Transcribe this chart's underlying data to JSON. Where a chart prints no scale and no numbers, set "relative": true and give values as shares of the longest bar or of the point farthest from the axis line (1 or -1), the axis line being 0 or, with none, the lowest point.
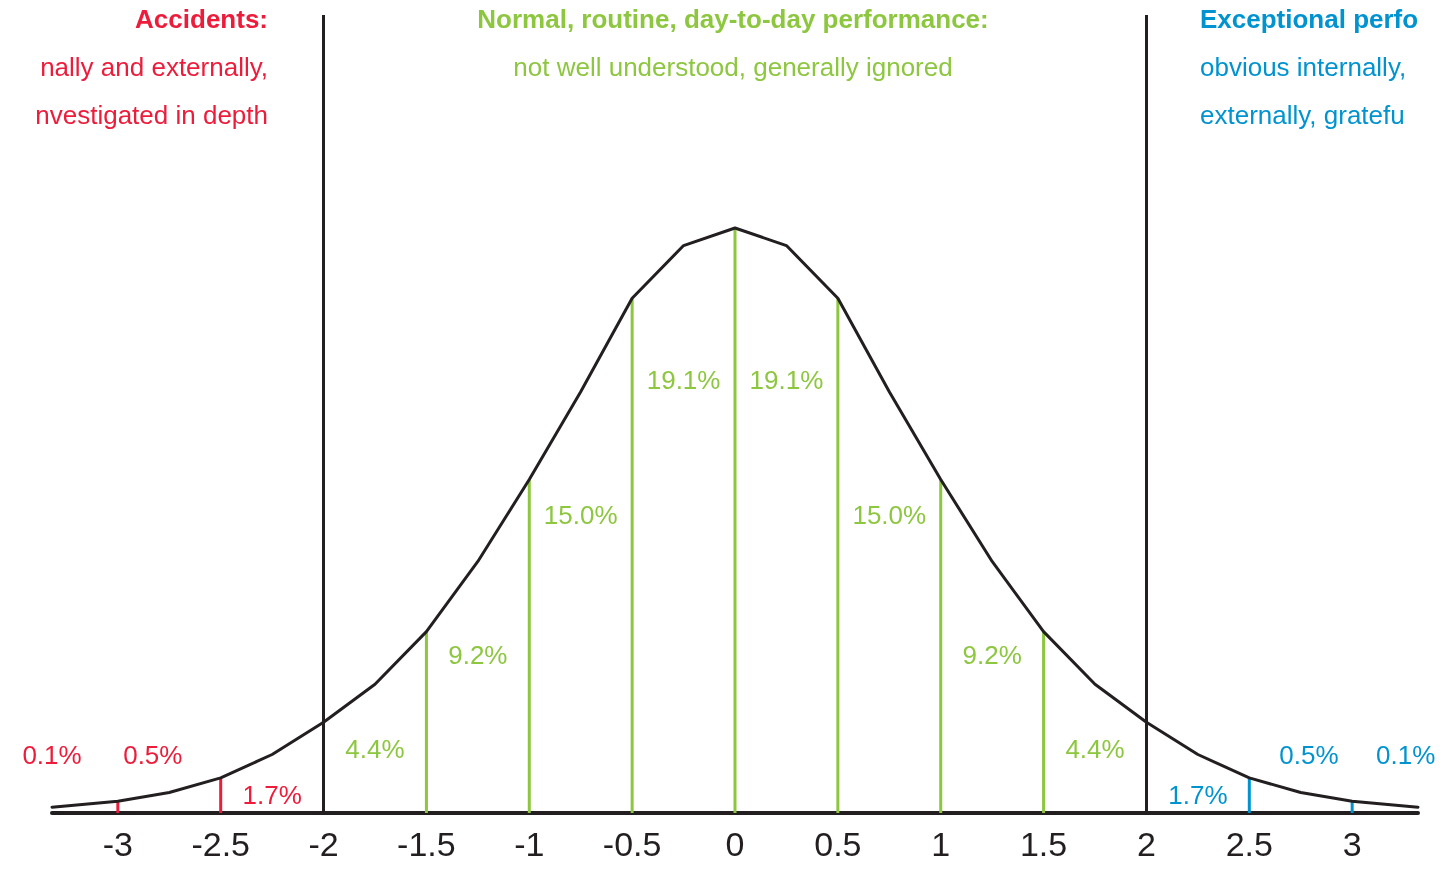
{
  "chart_data": {
    "type": "line",
    "relative": true,
    "marker": "none",
    "line_style": "solid",
    "xlim": [
      -3.32,
      3.32
    ],
    "xticks": [
      -3,
      -2.5,
      -2,
      -1.5,
      -1,
      -0.5,
      0,
      0.5,
      1,
      1.5,
      2,
      2.5,
      3
    ],
    "series": [
      {
        "color": "#231f20",
        "x": [
          -3.32,
          -3,
          -2.75,
          -2.5,
          -2.25,
          -2,
          -1.75,
          -1.5,
          -1.25,
          -1,
          -0.75,
          -0.5,
          -0.25,
          0,
          0.25,
          0.5,
          0.75,
          1,
          1.25,
          1.5,
          1.75,
          2,
          2.25,
          2.5,
          2.75,
          3,
          3.32
        ],
        "values": [
          0.01,
          0.02,
          0.035,
          0.06,
          0.1,
          0.155,
          0.22,
          0.31,
          0.43,
          0.57,
          0.72,
          0.88,
          0.97,
          1,
          0.97,
          0.88,
          0.72,
          0.57,
          0.43,
          0.31,
          0.22,
          0.155,
          0.1,
          0.06,
          0.035,
          0.02,
          0.01
        ]
      },
      {
        "type": "bar",
        "color": "#ed1c3a",
        "x": [
          -3,
          -2.5
        ],
        "values": [
          0.02,
          0.06
        ]
      },
      {
        "type": "bar",
        "color": "#8dc63f",
        "x": [
          -1.5,
          -1,
          -0.5,
          0,
          0.5,
          1,
          1.5
        ],
        "values": [
          0.31,
          0.57,
          0.88,
          1,
          0.88,
          0.57,
          0.31
        ]
      },
      {
        "type": "bar",
        "color": "#0093d0",
        "x": [
          2.5,
          3
        ],
        "values": [
          0.06,
          0.02
        ]
      }
    ],
    "ref_lines": [
      {
        "axis": "x",
        "value": -2,
        "color": "#231f20"
      },
      {
        "axis": "x",
        "value": 2,
        "color": "#231f20"
      }
    ],
    "annotations": [
      "Accidents:\nnally and externally,\nnvestigated in depth",
      "Normal, routine, day-to-day performance:\nnot well understood, generally ignored",
      "Exceptional perfo\nobvious internally,\nexternally, gratefu",
      "0.1%",
      "0.5%",
      "1.7%",
      "4.4%",
      "9.2%",
      "15.0%",
      "19.1%",
      "19.1%",
      "15.0%",
      "9.2%",
      "4.4%",
      "1.7%",
      "0.5%",
      "0.1%"
    ]
  }
}
